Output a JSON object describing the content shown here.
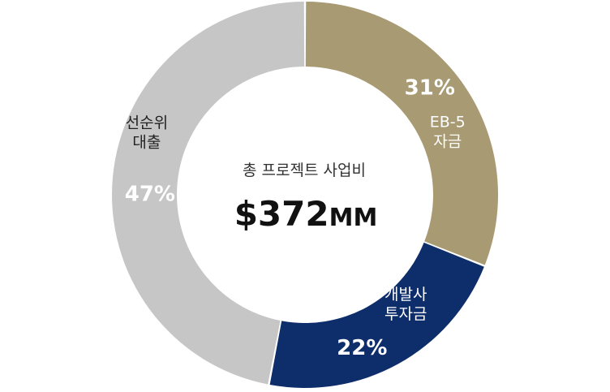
{
  "chart_data": {
    "type": "pie",
    "donut": true,
    "categories": [
      "EB-5 자금",
      "개발사 투자금",
      "선순위 대출"
    ],
    "values": [
      31,
      22,
      47
    ],
    "value_labels": [
      "31%",
      "22%",
      "47%"
    ],
    "category_lines": [
      [
        "EB-5",
        "자금"
      ],
      [
        "개발사",
        "투자금"
      ],
      [
        "선순위",
        "대출"
      ]
    ],
    "colors": [
      "#a89a73",
      "#0d2d6b",
      "#c6c6c6"
    ],
    "label_colors": [
      "#ffffff",
      "#ffffff",
      "#ffffff"
    ],
    "center": {
      "subtitle": "총 프로젝트 사업비",
      "value": "$372",
      "unit": "MM"
    }
  }
}
